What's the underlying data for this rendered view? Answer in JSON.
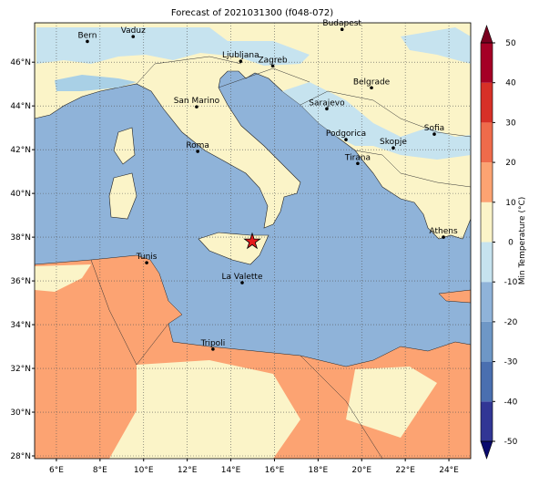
{
  "map": {
    "title": "Forecast of 2021031300 (f048-072)",
    "xlim": [
      5,
      25
    ],
    "ylim": [
      27.875,
      47.8
    ],
    "xticks": [
      {
        "value": 6,
        "label": "6°E"
      },
      {
        "value": 8,
        "label": "8°E"
      },
      {
        "value": 10,
        "label": "10°E"
      },
      {
        "value": 12,
        "label": "12°E"
      },
      {
        "value": 14,
        "label": "14°E"
      },
      {
        "value": 16,
        "label": "16°E"
      },
      {
        "value": 18,
        "label": "18°E"
      },
      {
        "value": 20,
        "label": "20°E"
      },
      {
        "value": 22,
        "label": "22°E"
      },
      {
        "value": 24,
        "label": "24°E"
      }
    ],
    "yticks": [
      {
        "value": 28,
        "label": "28°N"
      },
      {
        "value": 30,
        "label": "30°N"
      },
      {
        "value": 32,
        "label": "32°N"
      },
      {
        "value": 34,
        "label": "34°N"
      },
      {
        "value": 36,
        "label": "36°N"
      },
      {
        "value": 38,
        "label": "38°N"
      },
      {
        "value": 40,
        "label": "40°N"
      },
      {
        "value": 42,
        "label": "42°N"
      },
      {
        "value": 44,
        "label": "44°N"
      },
      {
        "value": 46,
        "label": "46°N"
      }
    ],
    "grid": true,
    "cities": [
      {
        "name": "Bern",
        "lon": 7.42,
        "lat": 46.95
      },
      {
        "name": "Vaduz",
        "lon": 9.52,
        "lat": 47.17
      },
      {
        "name": "Budapest",
        "lon": 19.1,
        "lat": 47.5
      },
      {
        "name": "Ljubljana",
        "lon": 14.45,
        "lat": 46.04
      },
      {
        "name": "Zagreb",
        "lon": 15.92,
        "lat": 45.83
      },
      {
        "name": "Belgrade",
        "lon": 20.45,
        "lat": 44.83
      },
      {
        "name": "San Marino",
        "lon": 12.43,
        "lat": 43.96
      },
      {
        "name": "Sarajevo",
        "lon": 18.4,
        "lat": 43.87
      },
      {
        "name": "Sofia",
        "lon": 23.33,
        "lat": 42.71
      },
      {
        "name": "Podgorica",
        "lon": 19.28,
        "lat": 42.46
      },
      {
        "name": "Skopje",
        "lon": 21.45,
        "lat": 42.08
      },
      {
        "name": "Roma",
        "lon": 12.48,
        "lat": 41.92
      },
      {
        "name": "Tirana",
        "lon": 19.82,
        "lat": 41.37
      },
      {
        "name": "Athens",
        "lon": 23.75,
        "lat": 38.0
      },
      {
        "name": "Tunis",
        "lon": 10.14,
        "lat": 36.83
      },
      {
        "name": "La Valette",
        "lon": 14.52,
        "lat": 35.92
      },
      {
        "name": "Tripoli",
        "lon": 13.18,
        "lat": 32.88
      }
    ],
    "event": {
      "lon": 14.98,
      "lat": 37.8,
      "color": "#e41a1c"
    },
    "colorbar": {
      "label": "Min Temperature (°C)",
      "lim": [
        -50,
        50
      ],
      "ticks": [
        -50,
        -40,
        -30,
        -20,
        -10,
        0,
        10,
        20,
        30,
        40,
        50
      ],
      "colors": [
        "#313695",
        "#4a6fb0",
        "#6e97c6",
        "#8fb3d9",
        "#c6e3ef",
        "#fbf4c8",
        "#fca372",
        "#ef6b4b",
        "#d73027",
        "#a50026"
      ],
      "under": "#0a0a6e",
      "over": "#7a0020"
    }
  }
}
